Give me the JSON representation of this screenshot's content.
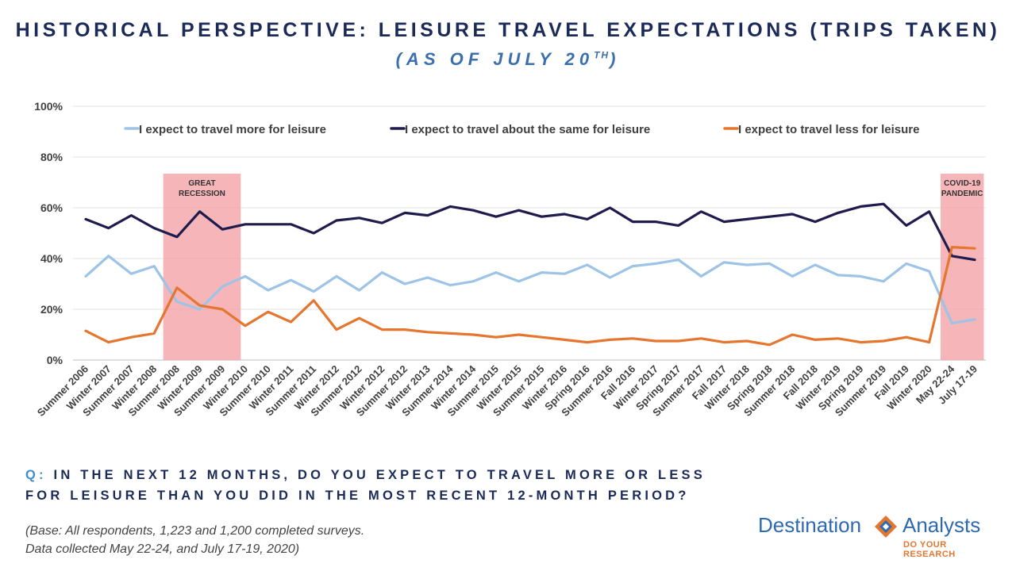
{
  "header": {
    "title": "HISTORICAL PERSPECTIVE: LEISURE TRAVEL EXPECTATIONS (TRIPS TAKEN)",
    "subtitle_main": "(AS OF JULY 20",
    "subtitle_sup": "TH",
    "subtitle_end": ")"
  },
  "chart_data": {
    "type": "line",
    "title": "",
    "xlabel": "",
    "ylabel": "",
    "ylim": [
      0,
      100
    ],
    "yticks": [
      "0%",
      "20%",
      "40%",
      "60%",
      "80%",
      "100%"
    ],
    "grid": true,
    "legend_position": "top",
    "categories": [
      "Summer 2006",
      "Winter 2007",
      "Summer 2007",
      "Winter 2008",
      "Summer 2008",
      "Winter 2009",
      "Summer 2009",
      "Winter 2010",
      "Summer 2010",
      "Winter 2011",
      "Summer 2011",
      "Winter 2012",
      "Summer 2012",
      "Winter 2012",
      "Summer 2012",
      "Winter 2013",
      "Summer 2014",
      "Winter 2014",
      "Summer 2015",
      "Winter 2015",
      "Summer 2015",
      "Winter 2016",
      "Spring 2016",
      "Summer 2016",
      "Fall 2016",
      "Winter 2017",
      "Spring 2017",
      "Summer 2017",
      "Fall 2017",
      "Winter 2018",
      "Spring 2018",
      "Summer 2018",
      "Fall 2018",
      "Winter 2019",
      "Spring 2019",
      "Summer 2019",
      "Fall 2019",
      "Winter 2020",
      "May 22-24",
      "July 17-19"
    ],
    "series": [
      {
        "name": "I expect to travel more for leisure",
        "color": "#9dc3e6",
        "values": [
          33,
          41,
          34,
          37,
          23,
          20,
          29,
          33,
          27.5,
          31.5,
          27,
          33,
          27.5,
          34.5,
          30,
          32.5,
          29.5,
          31,
          34.5,
          31,
          34.5,
          34,
          37.5,
          32.5,
          37,
          38,
          39.5,
          33,
          38.5,
          37.5,
          38,
          33,
          37.5,
          33.5,
          33,
          31,
          38,
          35,
          14.5,
          16
        ]
      },
      {
        "name": "I expect to travel about the same for leisure",
        "color": "#1f1b4d",
        "values": [
          55.5,
          52,
          57,
          52,
          48.5,
          58.5,
          51.5,
          53.5,
          53.5,
          53.5,
          50,
          55,
          56,
          54,
          58,
          57,
          60.5,
          59,
          56.5,
          59,
          56.5,
          57.5,
          55.5,
          60,
          54.5,
          54.5,
          53,
          58.5,
          54.5,
          55.5,
          56.5,
          57.5,
          54.5,
          58,
          60.5,
          61.5,
          53,
          58.5,
          41,
          39.5
        ]
      },
      {
        "name": "I expect to travel less for leisure",
        "color": "#e5762f",
        "values": [
          11.5,
          7,
          9,
          10.5,
          28.5,
          21.5,
          20,
          13.5,
          19,
          15,
          23.5,
          12,
          16.5,
          12,
          12,
          11,
          10.5,
          10,
          9,
          10,
          9,
          8,
          7,
          8,
          8.5,
          7.5,
          7.5,
          8.5,
          7,
          7.5,
          6,
          10,
          8,
          8.5,
          7,
          7.5,
          9,
          7,
          44.5,
          44
        ]
      }
    ],
    "shaded_regions": [
      {
        "label_line1": "GREAT",
        "label_line2": "RECESSION",
        "from_index": 3.4,
        "to_index": 6.8
      },
      {
        "label_line1": "COVID-19",
        "label_line2": "PANDEMIC",
        "from_index": 37.5,
        "to_index": 39.4
      }
    ],
    "shade_color": "#f4a8ad"
  },
  "question": {
    "prefix": "Q:",
    "line1": "IN THE NEXT 12 MONTHS, DO YOU EXPECT TO TRAVEL MORE OR LESS",
    "line2": "FOR LEISURE THAN YOU DID IN THE MOST RECENT 12-MONTH PERIOD?"
  },
  "footnote": {
    "line1": "(Base: All respondents, 1,223 and 1,200 completed surveys.",
    "line2": "Data collected May 22-24, and July 17-19, 2020)"
  },
  "logo": {
    "word1": "Destination",
    "word2": "Analysts",
    "tagline": "DO YOUR RESEARCH"
  }
}
